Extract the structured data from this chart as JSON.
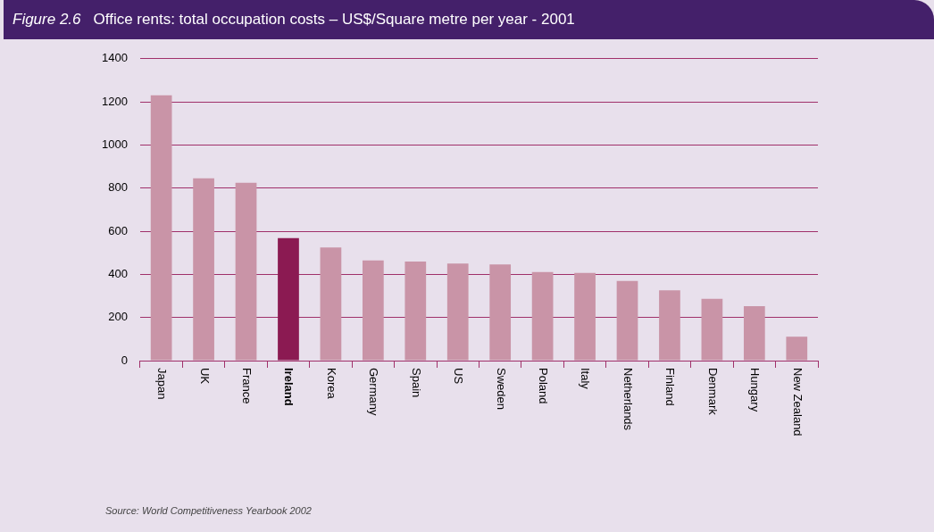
{
  "chart_data": {
    "type": "bar",
    "title": "Figure 2.6",
    "subtitle": "Office rents: total occupation costs – US$/Square metre per year - 2001",
    "categories": [
      "Japan",
      "UK",
      "France",
      "Ireland",
      "Korea",
      "Germany",
      "Spain",
      "US",
      "Sweden",
      "Poland",
      "Italy",
      "Netherlands",
      "Finland",
      "Denmark",
      "Hungary",
      "New Zealand"
    ],
    "values": [
      1230,
      845,
      825,
      568,
      525,
      465,
      460,
      450,
      446,
      411,
      407,
      369,
      326,
      287,
      253,
      111
    ],
    "colors": [
      "#c994a7",
      "#c994a7",
      "#c994a7",
      "#8b1a52",
      "#c994a7",
      "#c994a7",
      "#c994a7",
      "#c994a7",
      "#c994a7",
      "#c994a7",
      "#c994a7",
      "#c994a7",
      "#c994a7",
      "#c994a7",
      "#c994a7",
      "#c994a7"
    ],
    "ylim": [
      0,
      1400
    ],
    "yticks": [
      0,
      200,
      400,
      600,
      800,
      1000,
      1200,
      1400
    ],
    "grid": "y",
    "annotations": [
      "Source: World Competitiveness Yearbook 2002"
    ]
  }
}
